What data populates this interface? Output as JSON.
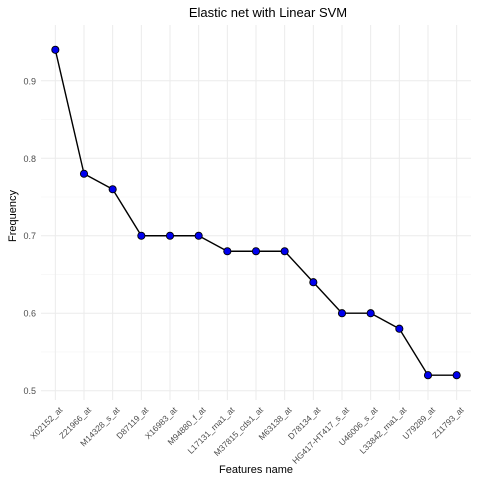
{
  "chart_data": {
    "type": "line",
    "title": "Elastic net  with Linear SVM",
    "xlabel": "Features name",
    "ylabel": "Frequency",
    "categories": [
      "X02152_at",
      "Z21966_at",
      "M14328_s_at",
      "D87119_at",
      "X16983_at",
      "M94880_f_at",
      "L17131_rna1_at",
      "M37815_cds1_at",
      "M63138_at",
      "D78134_at",
      "HG417-HT417_s_at",
      "U46006_s_at",
      "L33842_rna1_at",
      "U79289_at",
      "Z11793_at"
    ],
    "values": [
      0.94,
      0.78,
      0.76,
      0.7,
      0.7,
      0.7,
      0.68,
      0.68,
      0.68,
      0.64,
      0.6,
      0.6,
      0.58,
      0.52,
      0.52
    ],
    "ylim": [
      0.488,
      0.972
    ],
    "yticks": [
      "0.5",
      "0.6",
      "0.7",
      "0.8",
      "0.9"
    ],
    "grid": true,
    "colors": {
      "line": "#000000",
      "point": "#0000ee",
      "grid": "#ebebeb"
    }
  }
}
